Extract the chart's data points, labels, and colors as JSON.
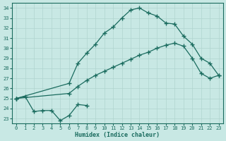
{
  "xlabel": "Humidex (Indice chaleur)",
  "bg_color": "#c8e8e4",
  "line_color": "#1a6b5e",
  "xlim": [
    -0.5,
    23.5
  ],
  "ylim": [
    22.5,
    34.5
  ],
  "xticks": [
    0,
    1,
    2,
    3,
    4,
    5,
    6,
    7,
    8,
    9,
    10,
    11,
    12,
    13,
    14,
    15,
    16,
    17,
    18,
    19,
    20,
    21,
    22,
    23
  ],
  "yticks": [
    23,
    24,
    25,
    26,
    27,
    28,
    29,
    30,
    31,
    32,
    33,
    34
  ],
  "series": [
    {
      "x": [
        0,
        1,
        2,
        3,
        4,
        5,
        6,
        7,
        8
      ],
      "y": [
        25.0,
        25.2,
        23.7,
        23.8,
        23.8,
        22.8,
        23.3,
        24.4,
        24.3
      ]
    },
    {
      "x": [
        0,
        6,
        7,
        8,
        9,
        10,
        11,
        12,
        13,
        14,
        15,
        16,
        17,
        18,
        19,
        20,
        21,
        22,
        23
      ],
      "y": [
        25.0,
        26.5,
        28.5,
        29.5,
        30.4,
        31.5,
        32.1,
        33.0,
        33.8,
        34.0,
        33.5,
        33.2,
        32.5,
        32.4,
        31.2,
        30.4,
        29.0,
        28.5,
        27.3
      ]
    },
    {
      "x": [
        0,
        6,
        7,
        8,
        9,
        10,
        11,
        12,
        13,
        14,
        15,
        16,
        17,
        18,
        19,
        20,
        21,
        22,
        23
      ],
      "y": [
        25.0,
        25.5,
        26.2,
        26.8,
        27.3,
        27.7,
        28.1,
        28.5,
        28.9,
        29.3,
        29.6,
        30.0,
        30.3,
        30.5,
        30.2,
        29.0,
        27.5,
        27.0,
        27.3
      ]
    }
  ]
}
